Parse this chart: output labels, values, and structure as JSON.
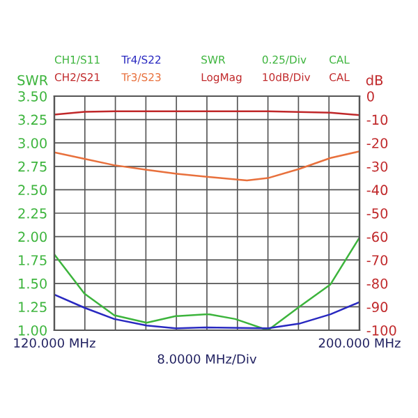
{
  "chart_data": {
    "type": "line",
    "ylabel": "SWR",
    "y2label": "dB",
    "x": [
      120,
      127.9,
      135.7,
      144.2,
      151.8,
      159.5,
      160.7,
      167.4,
      176,
      184.2,
      192.4,
      200
    ],
    "series": [
      {
        "name": "CH1/S11",
        "color": "#3cb43c",
        "axis": "y",
        "values": [
          1.81,
          1.39,
          1.16,
          1.08,
          1.15,
          1.17,
          1.17,
          1.12,
          1.0,
          1.25,
          1.49,
          1.99
        ]
      },
      {
        "name": "CH2/S21",
        "color": "#c0282a",
        "axis": "y2",
        "x": [
          120,
          127.9,
          135.7,
          160.7,
          176,
          192.4,
          200
        ],
        "values": [
          -7.9,
          -6.7,
          -6.5,
          -6.5,
          -6.5,
          -7.1,
          -8.1
        ]
      },
      {
        "name": "Tr4/S22",
        "color": "#2828c0",
        "axis": "y",
        "x": [
          120,
          127.9,
          135.7,
          144.2,
          151.8,
          159.5,
          176,
          184.2,
          192.4,
          200
        ],
        "values": [
          1.38,
          1.24,
          1.12,
          1.05,
          1.02,
          1.03,
          1.02,
          1.07,
          1.17,
          1.3
        ]
      },
      {
        "name": "Tr3/S23",
        "color": "#e8703c",
        "axis": "y2",
        "x": [
          120,
          127.9,
          135.7,
          144.2,
          151.8,
          159.5,
          170.5,
          176,
          184.2,
          192.4,
          200
        ],
        "values": [
          -24.0,
          -26.8,
          -29.5,
          -31.5,
          -33.1,
          -34.4,
          -36.0,
          -35.0,
          -31.1,
          -26.4,
          -23.6
        ]
      }
    ],
    "xlabel": "8.0000 MHz/Div",
    "annotations": [
      "SWR",
      "0.25/Div",
      "CAL",
      "LogMag",
      "10dB/Div",
      "CAL"
    ],
    "xlim": [
      120,
      200
    ],
    "xticks": [
      {
        "value": 120,
        "label": "120.000 MHz"
      },
      {
        "value": 128,
        "label": null
      },
      {
        "value": 136,
        "label": null
      },
      {
        "value": 144,
        "label": null
      },
      {
        "value": 152,
        "label": null
      },
      {
        "value": 160,
        "label": null
      },
      {
        "value": 168,
        "label": null
      },
      {
        "value": 176,
        "label": null
      },
      {
        "value": 184,
        "label": null
      },
      {
        "value": 192,
        "label": null
      },
      {
        "value": 200,
        "label": "200.000 MHz"
      }
    ],
    "ylim": [
      1.0,
      3.5
    ],
    "yticks": [
      {
        "value": 1.0,
        "label": "1.00"
      },
      {
        "value": 1.25,
        "label": "1.25"
      },
      {
        "value": 1.5,
        "label": "1.50"
      },
      {
        "value": 1.75,
        "label": "1.75"
      },
      {
        "value": 2.0,
        "label": "2.00"
      },
      {
        "value": 2.25,
        "label": "2.25"
      },
      {
        "value": 2.5,
        "label": "2.50"
      },
      {
        "value": 2.75,
        "label": "2.75"
      },
      {
        "value": 3.0,
        "label": "3.00"
      },
      {
        "value": 3.25,
        "label": "3.25"
      },
      {
        "value": 3.5,
        "label": "3.50"
      }
    ],
    "y2lim": [
      -100,
      0
    ],
    "y2ticks": [
      0,
      -10,
      -20,
      -30,
      -40,
      -50,
      -60,
      -70,
      -80,
      -90,
      -100
    ],
    "grid": true,
    "legend": false
  }
}
